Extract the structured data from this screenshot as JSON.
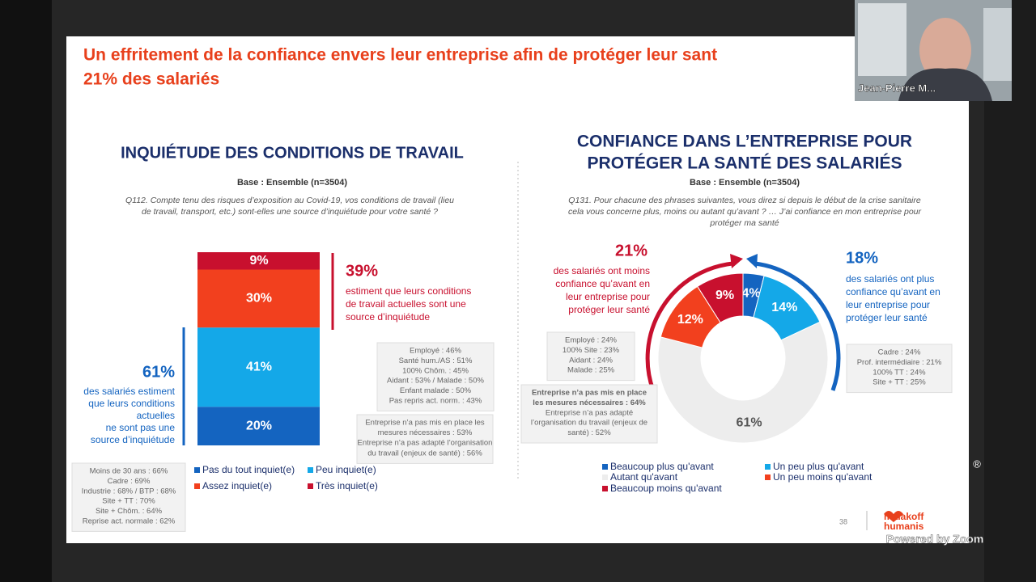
{
  "slide": {
    "title": [
      "Un effritement de la confiance envers leur entreprise afin de protéger leur sant",
      "21% des salariés"
    ],
    "page_number": "38",
    "logo": [
      "malakoff",
      "humanis"
    ],
    "registered": "®"
  },
  "zoom": {
    "participant_name": "Jean-Pierre M...",
    "powered_by": "Powered by Zoom"
  },
  "chart_data": [
    {
      "type": "stacked_bar",
      "title": "INQUIÉTUDE DES CONDITIONS DE TRAVAIL",
      "subtitle": "Base : Ensemble (n=3504)",
      "question": [
        "Q112. Compte tenu des risques d’exposition au Covid-19, vos conditions de travail (lieu",
        "de travail, transport, etc.) sont-elles une source d’inquiétude pour votre santé ?"
      ],
      "categories": [
        null
      ],
      "ylim": [
        0,
        100
      ],
      "series": [
        {
          "name": "Pas du tout inquiet(e)",
          "color": "#1464c0",
          "values": [
            20
          ],
          "value_labels": [
            "20%"
          ]
        },
        {
          "name": "Peu inquiet(e)",
          "color": "#14a8e8",
          "values": [
            41
          ],
          "value_labels": [
            "41%"
          ]
        },
        {
          "name": "Assez inquiet(e)",
          "color": "#f2401e",
          "values": [
            30
          ],
          "value_labels": [
            "30%"
          ]
        },
        {
          "name": "Très inquiet(e)",
          "color": "#c8102e",
          "values": [
            9
          ],
          "value_labels": [
            "9%"
          ]
        }
      ],
      "annotations": [
        {
          "label": "39%",
          "text": [
            "estiment que leurs conditions",
            "de travail actuelles sont une",
            "source d’inquiétude"
          ],
          "notes": [
            [
              "Employé : 46%",
              "Santé hum./AS : 51%",
              "100% Chôm. : 45%",
              "Aidant : 53% / Malade : 50%",
              "Enfant malade : 50%",
              "Pas repris act. norm. : 43%"
            ],
            [
              "Entreprise n’a pas mis en place les",
              "mesures nécessaires : 53%",
              "Entreprise n’a pas adapté l’organisation",
              "du travail (enjeux de santé) : 56%"
            ]
          ]
        },
        {
          "label": "61%",
          "text": [
            "des salariés estiment",
            "que leurs conditions",
            "actuelles",
            "ne sont pas une",
            "source d’inquiétude"
          ],
          "notes": [
            [
              "Moins de 30 ans : 66%",
              "Cadre : 69%",
              "Industrie : 68% / BTP : 68%",
              "Site + TT : 70%",
              "Site + Chôm. : 64%",
              "Reprise act. normale : 62%"
            ]
          ]
        }
      ]
    },
    {
      "type": "pie",
      "donut": true,
      "title": [
        "CONFIANCE DANS L’ENTREPRISE POUR",
        "PROTÉGER LA SANTÉ DES SALARIÉS"
      ],
      "subtitle": "Base : Ensemble (n=3504)",
      "question": [
        "Q131. Pour chacune des phrases suivantes, vous direz si depuis le début de la crise sanitaire",
        "cela vous concerne plus, moins ou autant qu’avant ? … J’ai confiance en mon entreprise pour",
        "protéger ma santé"
      ],
      "categories": [
        "Beaucoup plus qu'avant",
        "Un peu plus qu'avant",
        "Autant qu'avant",
        "Un peu moins qu'avant",
        "Beaucoup moins qu'avant"
      ],
      "values": [
        4,
        14,
        61,
        12,
        9
      ],
      "value_labels": [
        "4%",
        "14%",
        "61%",
        "12%",
        "9%"
      ],
      "colors": [
        "#1464c0",
        "#14a8e8",
        "#ededed",
        "#f2401e",
        "#c8102e"
      ],
      "annotations": [
        {
          "label": "21%",
          "text": [
            "des salariés ont moins",
            "confiance qu’avant en",
            "leur entreprise pour",
            "protéger leur santé"
          ],
          "notes": [
            [
              "Employé : 24%",
              "100% Site : 23%",
              "Aidant : 24%",
              "Malade : 25%"
            ],
            [
              "Entreprise n’a pas mis en place",
              "les mesures nécessaires : 64%",
              "Entreprise n’a pas adapté",
              "l’organisation du travail (enjeux de",
              "santé) : 52%"
            ]
          ]
        },
        {
          "label": "18%",
          "text": [
            "des salariés ont plus",
            "confiance qu’avant en",
            "leur entreprise pour",
            "protéger leur santé"
          ],
          "notes": [
            [
              "Cadre : 24%",
              "Prof. intermédiaire : 21%",
              "100% TT : 24%",
              "Site + TT : 25%"
            ]
          ]
        }
      ]
    }
  ]
}
